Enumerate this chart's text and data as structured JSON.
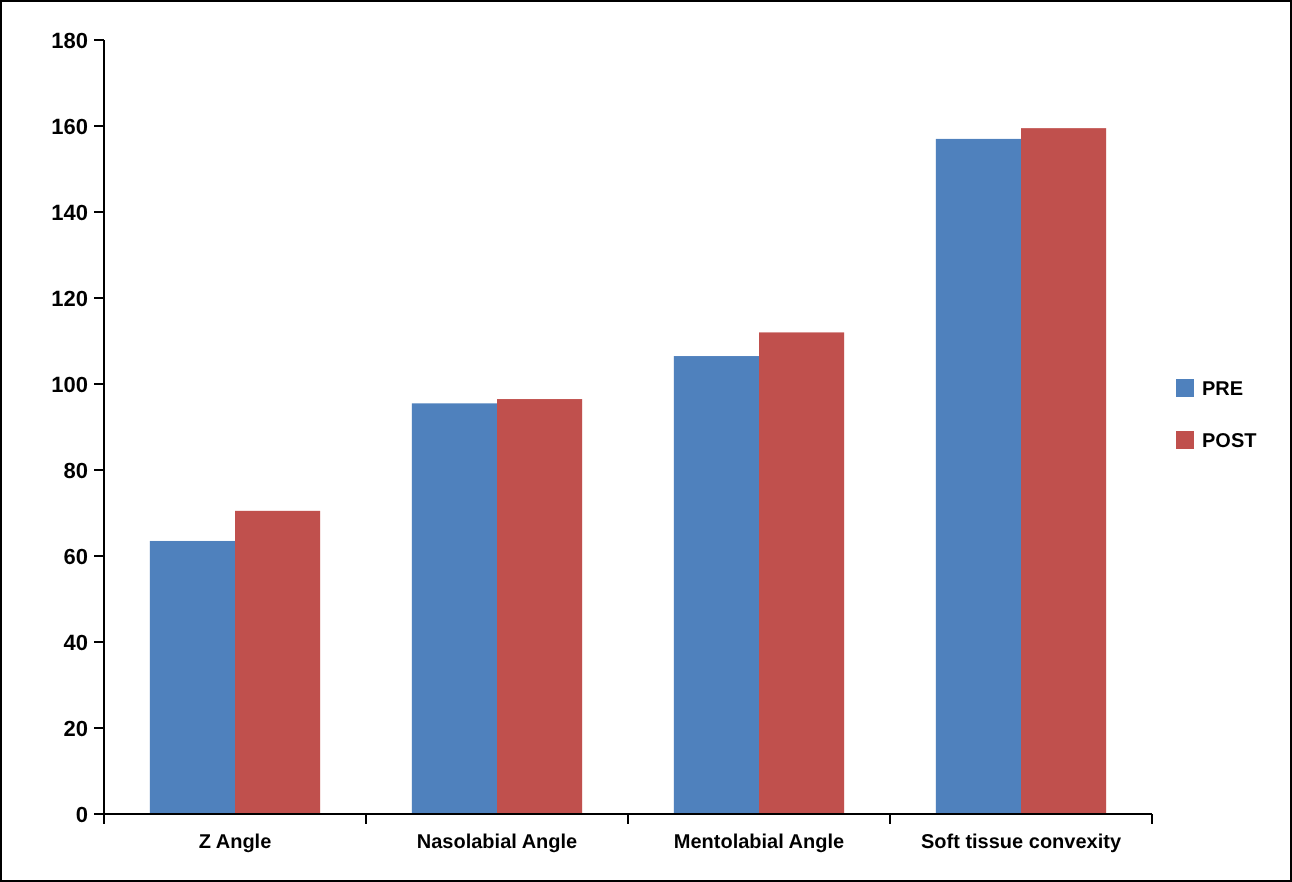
{
  "chart_data": {
    "type": "bar",
    "categories": [
      "Z Angle",
      "Nasolabial Angle",
      "Mentolabial Angle",
      "Soft tissue convexity"
    ],
    "series": [
      {
        "name": "PRE",
        "color": "#4f81bd",
        "values": [
          63.5,
          95.5,
          106.5,
          157
        ]
      },
      {
        "name": "POST",
        "color": "#c0504d",
        "values": [
          70.5,
          96.5,
          112,
          159.5
        ]
      }
    ],
    "ylim": [
      0,
      180
    ],
    "yticks": [
      0,
      20,
      40,
      60,
      80,
      100,
      120,
      140,
      160,
      180
    ],
    "grid": false,
    "legend": "right"
  }
}
